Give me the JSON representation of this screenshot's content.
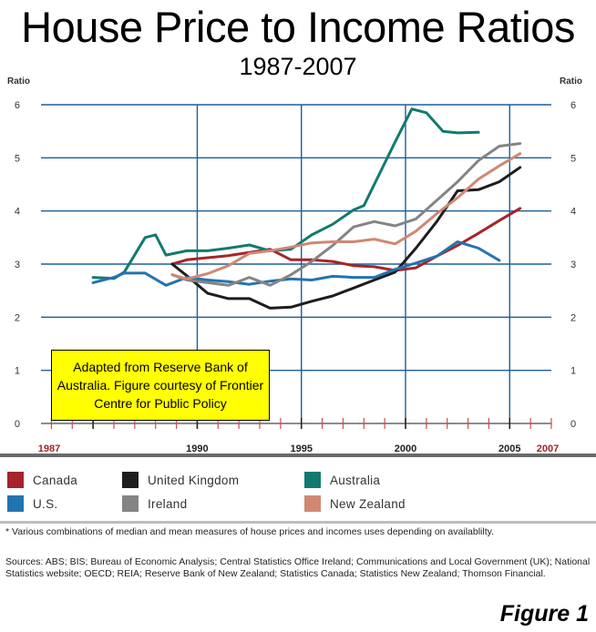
{
  "title": "House Price to Income Ratios",
  "subtitle": "1987-2007",
  "note": "Adapted from Reserve Bank of Australia. Figure courtesy of Frontier Centre for Public Policy",
  "footnote": "* Various combinations of median and mean measures of house prices and incomes uses depending on availablilty.",
  "sources": "Sources: ABS; BIS; Bureau of Economic Analysis; Central Statistics Office Ireland; Communications and Local Government (UK); National Statistics website; OECD; REIA; Reserve Bank of New Zealand; Statistics Canada; Statistics New Zealand; Thomson Financial.",
  "figure_label": "Figure 1",
  "chart_data": {
    "type": "line",
    "title": "House Price to Income Ratios",
    "subtitle": "1987-2007",
    "ylabel_left": "Ratio",
    "ylabel_right": "Ratio",
    "ylim": [
      0,
      6
    ],
    "yticks": [
      0,
      1,
      2,
      3,
      4,
      5,
      6
    ],
    "xlim": [
      1987,
      2007
    ],
    "xticks": [
      {
        "value": 1987,
        "label": "1987",
        "color": "#a4252a"
      },
      {
        "value": 1990,
        "label": "1990",
        "color": "#222222"
      },
      {
        "value": 1995,
        "label": "1995",
        "color": "#222222"
      },
      {
        "value": 2000,
        "label": "2000",
        "color": "#222222"
      },
      {
        "value": 2005,
        "label": "2005",
        "color": "#222222"
      },
      {
        "value": 2007,
        "label": "2007",
        "color": "#a4252a"
      }
    ],
    "grid": true,
    "legend_position": "bottom",
    "series": [
      {
        "name": "Canada",
        "color": "#a4252a",
        "points": [
          [
            1988.8,
            3.0
          ],
          [
            1989.5,
            3.08
          ],
          [
            1990.5,
            3.12
          ],
          [
            1991.5,
            3.16
          ],
          [
            1992.5,
            3.22
          ],
          [
            1993.5,
            3.28
          ],
          [
            1994.5,
            3.08
          ],
          [
            1995.5,
            3.08
          ],
          [
            1996.5,
            3.05
          ],
          [
            1997.5,
            2.97
          ],
          [
            1998.5,
            2.95
          ],
          [
            1999.5,
            2.88
          ],
          [
            2000.5,
            2.93
          ],
          [
            2001.5,
            3.15
          ],
          [
            2002.5,
            3.35
          ],
          [
            2003.5,
            3.58
          ],
          [
            2004.5,
            3.82
          ],
          [
            2005.5,
            4.05
          ]
        ]
      },
      {
        "name": "United Kingdom",
        "color": "#1d1d1d",
        "points": [
          [
            1988.8,
            3.0
          ],
          [
            1989.5,
            2.78
          ],
          [
            1990.5,
            2.45
          ],
          [
            1991.5,
            2.35
          ],
          [
            1992.5,
            2.35
          ],
          [
            1993.5,
            2.17
          ],
          [
            1994.5,
            2.19
          ],
          [
            1995.5,
            2.3
          ],
          [
            1996.5,
            2.4
          ],
          [
            1997.5,
            2.55
          ],
          [
            1998.5,
            2.7
          ],
          [
            1999.5,
            2.85
          ],
          [
            2000.5,
            3.3
          ],
          [
            2001.5,
            3.8
          ],
          [
            2002.5,
            4.38
          ],
          [
            2003.5,
            4.4
          ],
          [
            2004.5,
            4.55
          ],
          [
            2005.5,
            4.82
          ]
        ]
      },
      {
        "name": "Australia",
        "color": "#127a6e",
        "points": [
          [
            1985.0,
            2.75
          ],
          [
            1986.0,
            2.73
          ],
          [
            1986.5,
            2.85
          ],
          [
            1987.5,
            3.5
          ],
          [
            1988.0,
            3.55
          ],
          [
            1988.5,
            3.17
          ],
          [
            1989.5,
            3.25
          ],
          [
            1990.5,
            3.25
          ],
          [
            1991.5,
            3.3
          ],
          [
            1992.5,
            3.36
          ],
          [
            1993.5,
            3.25
          ],
          [
            1994.5,
            3.28
          ],
          [
            1995.5,
            3.55
          ],
          [
            1996.5,
            3.75
          ],
          [
            1997.5,
            4.02
          ],
          [
            1998.0,
            4.1
          ],
          [
            1998.5,
            4.5
          ],
          [
            1999.5,
            5.3
          ],
          [
            2000.3,
            5.92
          ],
          [
            2001.0,
            5.85
          ],
          [
            2001.8,
            5.5
          ],
          [
            2002.5,
            5.47
          ],
          [
            2003.5,
            5.48
          ]
        ]
      },
      {
        "name": "U.S.",
        "color": "#2374ae",
        "points": [
          [
            1985.0,
            2.65
          ],
          [
            1986.0,
            2.75
          ],
          [
            1986.5,
            2.83
          ],
          [
            1987.5,
            2.83
          ],
          [
            1988.5,
            2.6
          ],
          [
            1989.5,
            2.75
          ],
          [
            1990.5,
            2.7
          ],
          [
            1991.5,
            2.67
          ],
          [
            1992.5,
            2.62
          ],
          [
            1993.5,
            2.68
          ],
          [
            1994.5,
            2.72
          ],
          [
            1995.5,
            2.7
          ],
          [
            1996.5,
            2.77
          ],
          [
            1997.5,
            2.75
          ],
          [
            1998.5,
            2.75
          ],
          [
            1999.5,
            2.9
          ],
          [
            2000.5,
            3.02
          ],
          [
            2001.5,
            3.15
          ],
          [
            2002.5,
            3.42
          ],
          [
            2003.5,
            3.3
          ],
          [
            2004.5,
            3.07
          ]
        ]
      },
      {
        "name": "Ireland",
        "color": "#848484",
        "points": [
          [
            1988.8,
            2.8
          ],
          [
            1989.5,
            2.7
          ],
          [
            1990.5,
            2.65
          ],
          [
            1991.5,
            2.6
          ],
          [
            1992.5,
            2.75
          ],
          [
            1993.5,
            2.6
          ],
          [
            1994.5,
            2.8
          ],
          [
            1995.5,
            3.05
          ],
          [
            1996.5,
            3.35
          ],
          [
            1997.5,
            3.7
          ],
          [
            1998.5,
            3.8
          ],
          [
            1999.5,
            3.72
          ],
          [
            2000.5,
            3.85
          ],
          [
            2001.5,
            4.2
          ],
          [
            2002.5,
            4.55
          ],
          [
            2003.5,
            4.95
          ],
          [
            2004.5,
            5.22
          ],
          [
            2005.5,
            5.27
          ]
        ]
      },
      {
        "name": "New Zealand",
        "color": "#d08872",
        "points": [
          [
            1988.8,
            2.8
          ],
          [
            1989.5,
            2.72
          ],
          [
            1990.5,
            2.82
          ],
          [
            1991.5,
            2.97
          ],
          [
            1992.5,
            3.2
          ],
          [
            1993.5,
            3.25
          ],
          [
            1994.5,
            3.32
          ],
          [
            1995.5,
            3.4
          ],
          [
            1996.5,
            3.42
          ],
          [
            1997.5,
            3.42
          ],
          [
            1998.5,
            3.47
          ],
          [
            1999.5,
            3.38
          ],
          [
            2000.5,
            3.62
          ],
          [
            2001.5,
            3.95
          ],
          [
            2002.5,
            4.25
          ],
          [
            2003.5,
            4.6
          ],
          [
            2004.5,
            4.85
          ],
          [
            2005.5,
            5.08
          ]
        ]
      }
    ]
  }
}
